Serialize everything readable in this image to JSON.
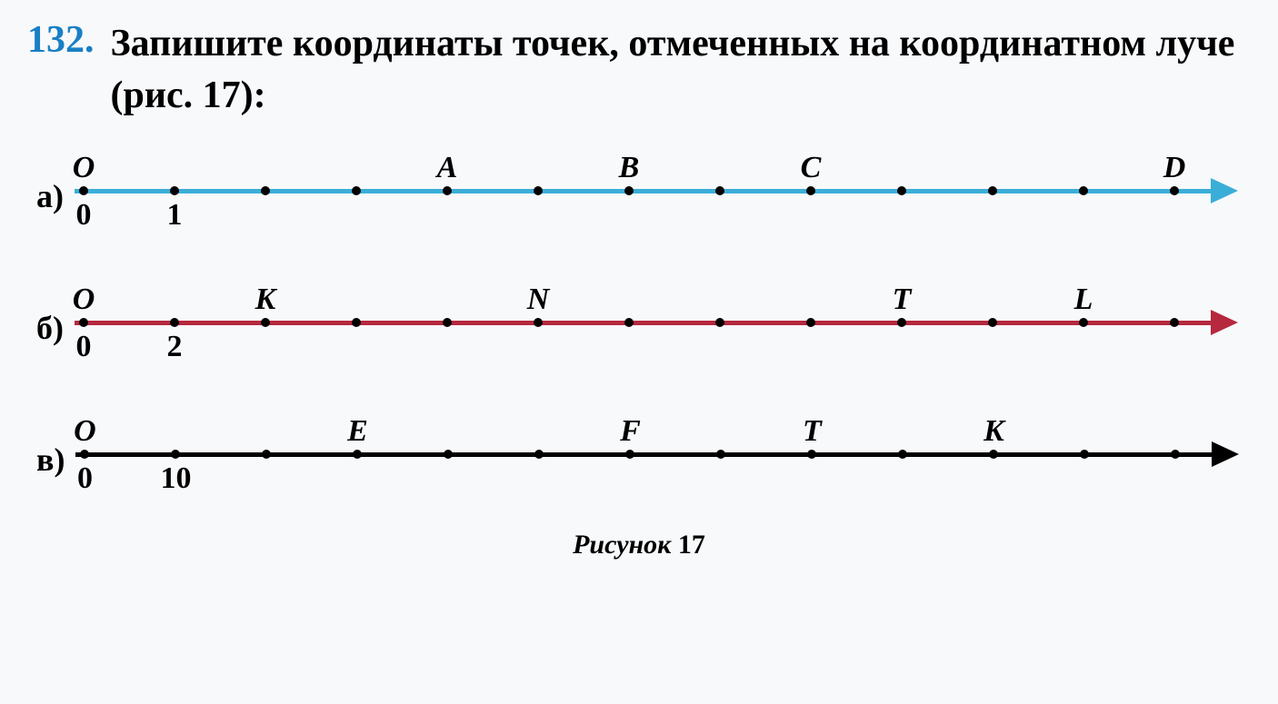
{
  "problem": {
    "number": "132.",
    "text": "Запишите координаты точек, отмеченных на координатном луче (рис. 17):"
  },
  "lines": [
    {
      "label": "а)",
      "color_class": "blue",
      "line_color": "#3baed8",
      "tick_count": 13,
      "tick_spacing": 100,
      "top_labels": [
        {
          "pos": 0,
          "text": "O"
        },
        {
          "pos": 4,
          "text": "A"
        },
        {
          "pos": 6,
          "text": "B"
        },
        {
          "pos": 8,
          "text": "C"
        },
        {
          "pos": 12,
          "text": "D"
        }
      ],
      "bottom_labels": [
        {
          "pos": 0,
          "text": "0"
        },
        {
          "pos": 1,
          "text": "1"
        }
      ]
    },
    {
      "label": "б)",
      "color_class": "red",
      "line_color": "#b5283e",
      "tick_count": 13,
      "tick_spacing": 100,
      "top_labels": [
        {
          "pos": 0,
          "text": "O"
        },
        {
          "pos": 2,
          "text": "K"
        },
        {
          "pos": 5,
          "text": "N"
        },
        {
          "pos": 9,
          "text": "T"
        },
        {
          "pos": 11,
          "text": "L"
        }
      ],
      "bottom_labels": [
        {
          "pos": 0,
          "text": "0"
        },
        {
          "pos": 1,
          "text": "2"
        }
      ]
    },
    {
      "label": "в)",
      "color_class": "black",
      "line_color": "#000000",
      "tick_count": 13,
      "tick_spacing": 100,
      "top_labels": [
        {
          "pos": 0,
          "text": "O"
        },
        {
          "pos": 3,
          "text": "E"
        },
        {
          "pos": 6,
          "text": "F"
        },
        {
          "pos": 8,
          "text": "T"
        },
        {
          "pos": 10,
          "text": "K"
        }
      ],
      "bottom_labels": [
        {
          "pos": 0,
          "text": "0"
        },
        {
          "pos": 1,
          "text": "10"
        }
      ]
    }
  ],
  "figure_caption": {
    "text": "Рисунок",
    "number": "17"
  },
  "style": {
    "background_color": "#f8f9fb",
    "number_color": "#1a7fc4",
    "title_fontsize": 42,
    "label_fontsize": 36,
    "point_label_fontsize": 34
  }
}
